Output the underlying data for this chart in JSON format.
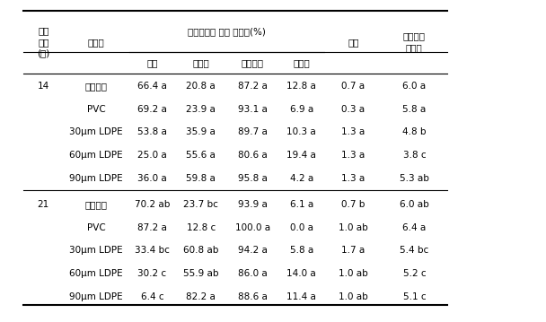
{
  "title": "",
  "col_headers_line1": [
    "유통\n기간\n(일)",
    "처리구",
    "부패지수에 따른 상품율(%)",
    "",
    "",
    "",
    "이취",
    "관능평가\n상품성"
  ],
  "col_headers_line2": [
    "",
    "",
    "특품",
    "보통품",
    "상품소계",
    "비상품",
    "",
    ""
  ],
  "rows": [
    {
      "day": "14",
      "treatment": "유공필름",
      "teukpum": "66.4 a",
      "botongpum": "20.8 a",
      "sangpum_sum": "87.2 a",
      "bisangpum": "12.8 a",
      "chwi": "0.7 a",
      "sensory": "6.0 a"
    },
    {
      "day": "",
      "treatment": "PVC",
      "teukpum": "69.2 a",
      "botongpum": "23.9 a",
      "sangpum_sum": "93.1 a",
      "bisangpum": "6.9 a",
      "chwi": "0.3 a",
      "sensory": "5.8 a"
    },
    {
      "day": "",
      "treatment": "30μm LDPE",
      "teukpum": "53.8 a",
      "botongpum": "35.9 a",
      "sangpum_sum": "89.7 a",
      "bisangpum": "10.3 a",
      "chwi": "1.3 a",
      "sensory": "4.8 b"
    },
    {
      "day": "",
      "treatment": "60μm LDPE",
      "teukpum": "25.0 a",
      "botongpum": "55.6 a",
      "sangpum_sum": "80.6 a",
      "bisangpum": "19.4 a",
      "chwi": "1.3 a",
      "sensory": "3.8 c"
    },
    {
      "day": "",
      "treatment": "90μm LDPE",
      "teukpum": "36.0 a",
      "botongpum": "59.8 a",
      "sangpum_sum": "95.8 a",
      "bisangpum": "4.2 a",
      "chwi": "1.3 a",
      "sensory": "5.3 ab"
    },
    {
      "day": "21",
      "treatment": "유공필름",
      "teukpum": "70.2 ab",
      "botongpum": "23.7 bc",
      "sangpum_sum": "93.9 a",
      "bisangpum": "6.1 a",
      "chwi": "0.7 b",
      "sensory": "6.0 ab"
    },
    {
      "day": "",
      "treatment": "PVC",
      "teukpum": "87.2 a",
      "botongpum": "12.8 c",
      "sangpum_sum": "100.0 a",
      "bisangpum": "0.0 a",
      "chwi": "1.0 ab",
      "sensory": "6.4 a"
    },
    {
      "day": "",
      "treatment": "30μm LDPE",
      "teukpum": "33.4 bc",
      "botongpum": "60.8 ab",
      "sangpum_sum": "94.2 a",
      "bisangpum": "5.8 a",
      "chwi": "1.7 a",
      "sensory": "5.4 bc"
    },
    {
      "day": "",
      "treatment": "60μm LDPE",
      "teukpum": "30.2 c",
      "botongpum": "55.9 ab",
      "sangpum_sum": "86.0 a",
      "bisangpum": "14.0 a",
      "chwi": "1.0 ab",
      "sensory": "5.2 c"
    },
    {
      "day": "",
      "treatment": "90μm LDPE",
      "teukpum": "6.4 c",
      "botongpum": "82.2 a",
      "sangpum_sum": "88.6 a",
      "bisangpum": "11.4 a",
      "chwi": "1.0 ab",
      "sensory": "5.1 c"
    }
  ],
  "background_color": "#ffffff",
  "text_color": "#000000",
  "font_size": 7.5,
  "header_font_size": 7.5
}
